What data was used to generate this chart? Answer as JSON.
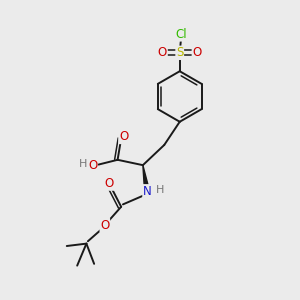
{
  "bg_color": "#ebebeb",
  "bond_color": "#1a1a1a",
  "colors": {
    "O": "#cc0000",
    "N": "#1a1acc",
    "S": "#b8b800",
    "Cl": "#33bb00",
    "H": "#777777"
  },
  "figsize": [
    3.0,
    3.0
  ],
  "dpi": 100,
  "lw": 1.4,
  "lw2": 1.1
}
